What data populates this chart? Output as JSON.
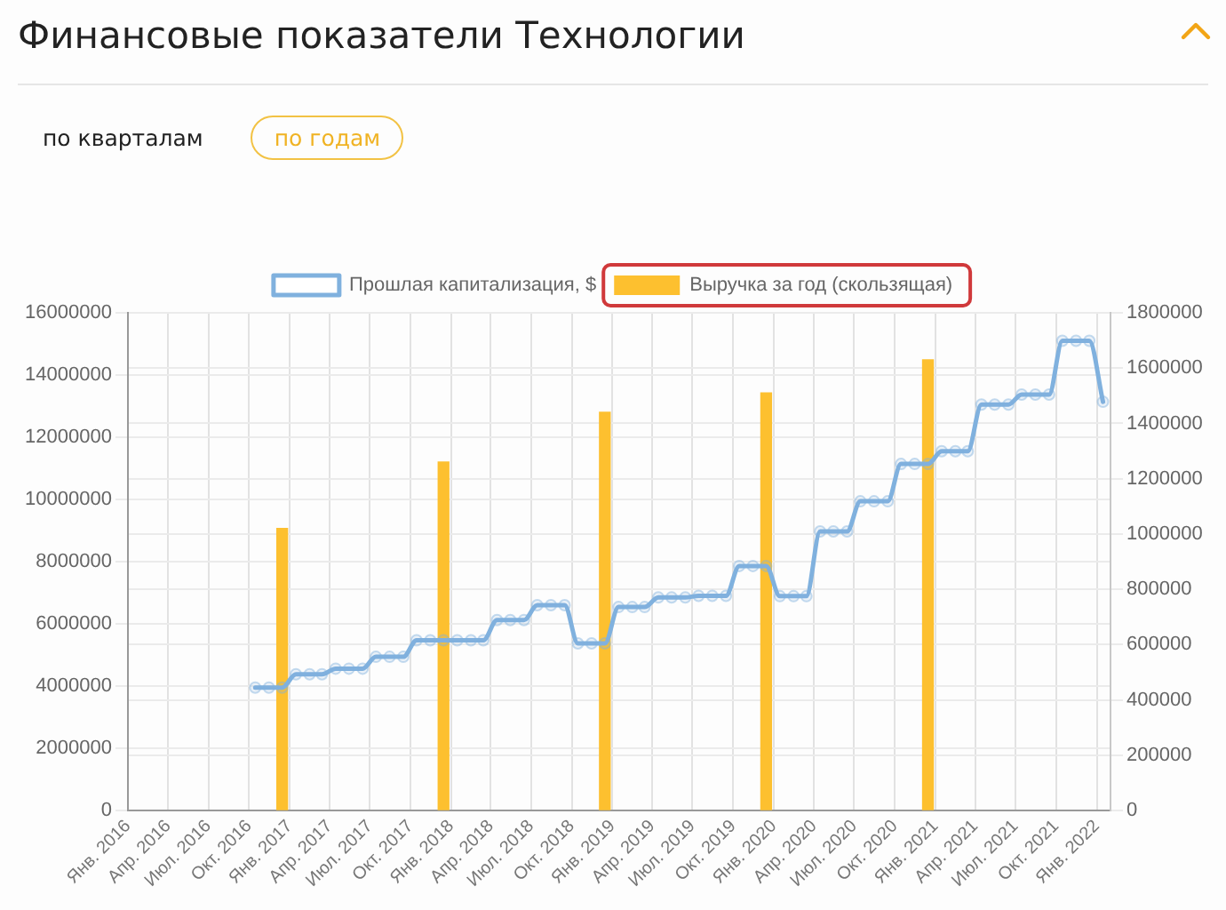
{
  "chart_data": {
    "type": "line",
    "title": "Финансовые показатели Технологии",
    "annotations": [
      "по кварталам",
      "по годам"
    ],
    "xlim": [
      "2016-01",
      "2022-02"
    ],
    "xticks": [
      {
        "value": "2016-01",
        "label": "Янв. 2016"
      },
      {
        "value": "2016-04",
        "label": "Апр. 2016"
      },
      {
        "value": "2016-07",
        "label": "Июл. 2016"
      },
      {
        "value": "2016-10",
        "label": "Окт. 2016"
      },
      {
        "value": "2017-01",
        "label": "Янв. 2017"
      },
      {
        "value": "2017-04",
        "label": "Апр. 2017"
      },
      {
        "value": "2017-07",
        "label": "Июл. 2017"
      },
      {
        "value": "2017-10",
        "label": "Окт. 2017"
      },
      {
        "value": "2018-01",
        "label": "Янв. 2018"
      },
      {
        "value": "2018-04",
        "label": "Апр. 2018"
      },
      {
        "value": "2018-07",
        "label": "Июл. 2018"
      },
      {
        "value": "2018-10",
        "label": "Окт. 2018"
      },
      {
        "value": "2019-01",
        "label": "Янв. 2019"
      },
      {
        "value": "2019-04",
        "label": "Апр. 2019"
      },
      {
        "value": "2019-07",
        "label": "Июл. 2019"
      },
      {
        "value": "2019-10",
        "label": "Окт. 2019"
      },
      {
        "value": "2020-01",
        "label": "Янв. 2020"
      },
      {
        "value": "2020-04",
        "label": "Апр. 2020"
      },
      {
        "value": "2020-07",
        "label": "Июл. 2020"
      },
      {
        "value": "2020-10",
        "label": "Окт. 2020"
      },
      {
        "value": "2021-01",
        "label": "Янв. 2021"
      },
      {
        "value": "2021-04",
        "label": "Апр. 2021"
      },
      {
        "value": "2021-07",
        "label": "Июл. 2021"
      },
      {
        "value": "2021-10",
        "label": "Окт. 2021"
      },
      {
        "value": "2022-01",
        "label": "Янв. 2022"
      }
    ],
    "ylim": [
      0,
      16000000
    ],
    "yticks": [
      0,
      2000000,
      4000000,
      6000000,
      8000000,
      10000000,
      12000000,
      14000000,
      16000000
    ],
    "y2lim": [
      0,
      1800000
    ],
    "y2ticks": [
      0,
      200000,
      400000,
      600000,
      800000,
      1000000,
      1200000,
      1400000,
      1600000,
      1800000
    ],
    "grid": true,
    "legend": "top",
    "marker": "circle",
    "series": [
      {
        "name": "Прошлая капитализация, $",
        "color": "#80b1de",
        "x": [
          "2016-10-15",
          "2016-11-15",
          "2016-12-15",
          "2017-01-15",
          "2017-02-15",
          "2017-03-15",
          "2017-04-15",
          "2017-05-15",
          "2017-06-15",
          "2017-07-15",
          "2017-08-15",
          "2017-09-15",
          "2017-10-15",
          "2017-11-15",
          "2017-12-15",
          "2018-01-15",
          "2018-02-15",
          "2018-03-15",
          "2018-04-15",
          "2018-05-15",
          "2018-06-15",
          "2018-07-15",
          "2018-08-15",
          "2018-09-15",
          "2018-10-15",
          "2018-11-15",
          "2018-12-15",
          "2019-01-15",
          "2019-02-15",
          "2019-03-15",
          "2019-04-15",
          "2019-05-15",
          "2019-06-15",
          "2019-07-15",
          "2019-08-15",
          "2019-09-15",
          "2019-10-15",
          "2019-11-15",
          "2019-12-15",
          "2020-01-15",
          "2020-02-15",
          "2020-03-15",
          "2020-04-15",
          "2020-05-15",
          "2020-06-15",
          "2020-07-15",
          "2020-08-15",
          "2020-09-15",
          "2020-10-15",
          "2020-11-15",
          "2020-12-15",
          "2021-01-15",
          "2021-02-15",
          "2021-03-15",
          "2021-04-15",
          "2021-05-15",
          "2021-06-15",
          "2021-07-15",
          "2021-08-15",
          "2021-09-15",
          "2021-10-15",
          "2021-11-15",
          "2021-12-15",
          "2022-01-15"
        ],
        "values": [
          3950000,
          3950000,
          3950000,
          4380000,
          4380000,
          4380000,
          4560000,
          4560000,
          4560000,
          4940000,
          4940000,
          4940000,
          5470000,
          5470000,
          5470000,
          5470000,
          5470000,
          5470000,
          6120000,
          6120000,
          6120000,
          6600000,
          6600000,
          6600000,
          5370000,
          5370000,
          5370000,
          6540000,
          6540000,
          6540000,
          6850000,
          6850000,
          6850000,
          6900000,
          6900000,
          6900000,
          7860000,
          7860000,
          7860000,
          6890000,
          6890000,
          6890000,
          8970000,
          8970000,
          8970000,
          9940000,
          9940000,
          9940000,
          11140000,
          11140000,
          11140000,
          11550000,
          11550000,
          11550000,
          13050000,
          13050000,
          13050000,
          13370000,
          13370000,
          13370000,
          15100000,
          15100000,
          15100000,
          13140000
        ]
      },
      {
        "type": "bar",
        "name": "Выручка за год (скользящая)",
        "color": "#fdc02f",
        "axis": "y2",
        "x": [
          "2016-12-15",
          "2017-12-15",
          "2018-12-15",
          "2019-12-15",
          "2020-12-15"
        ],
        "values": [
          1020000,
          1260000,
          1440000,
          1510000,
          1630000
        ]
      }
    ]
  }
}
